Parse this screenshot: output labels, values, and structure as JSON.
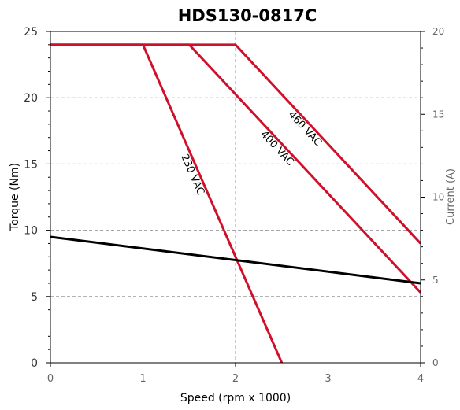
{
  "chart_data": {
    "type": "line",
    "title": "HDS130-0817C",
    "xlabel": "Speed (rpm x 1000)",
    "ylabel": "Torque (Nm)",
    "y2label": "Current (A)",
    "xlim": [
      0,
      4
    ],
    "ylim": [
      0,
      25
    ],
    "y2lim": [
      0,
      20
    ],
    "xticks": [
      "0",
      "1",
      "2",
      "3",
      "4"
    ],
    "yticks": [
      "0",
      "5",
      "10",
      "15",
      "20",
      "25"
    ],
    "y2ticks": [
      "0",
      "5",
      "10",
      "15",
      "20"
    ],
    "grid": true,
    "colors": {
      "torque": "#d0102a",
      "current": "#000000"
    },
    "series": [
      {
        "name": "230 VAC",
        "axis": "left",
        "color": "#d0102a",
        "x": [
          0,
          1.0,
          2.5
        ],
        "y": [
          24,
          24,
          0
        ]
      },
      {
        "name": "400 VAC",
        "axis": "left",
        "color": "#d0102a",
        "x": [
          0,
          1.5,
          4.0
        ],
        "y": [
          24,
          24,
          5.3
        ]
      },
      {
        "name": "460 VAC",
        "axis": "left",
        "color": "#d0102a",
        "x": [
          0,
          2.0,
          4.0
        ],
        "y": [
          24,
          24,
          9.0
        ]
      },
      {
        "name": "",
        "axis": "left",
        "color": "#000000",
        "x": [
          0,
          4.0
        ],
        "y": [
          9.5,
          6.0
        ]
      }
    ]
  }
}
